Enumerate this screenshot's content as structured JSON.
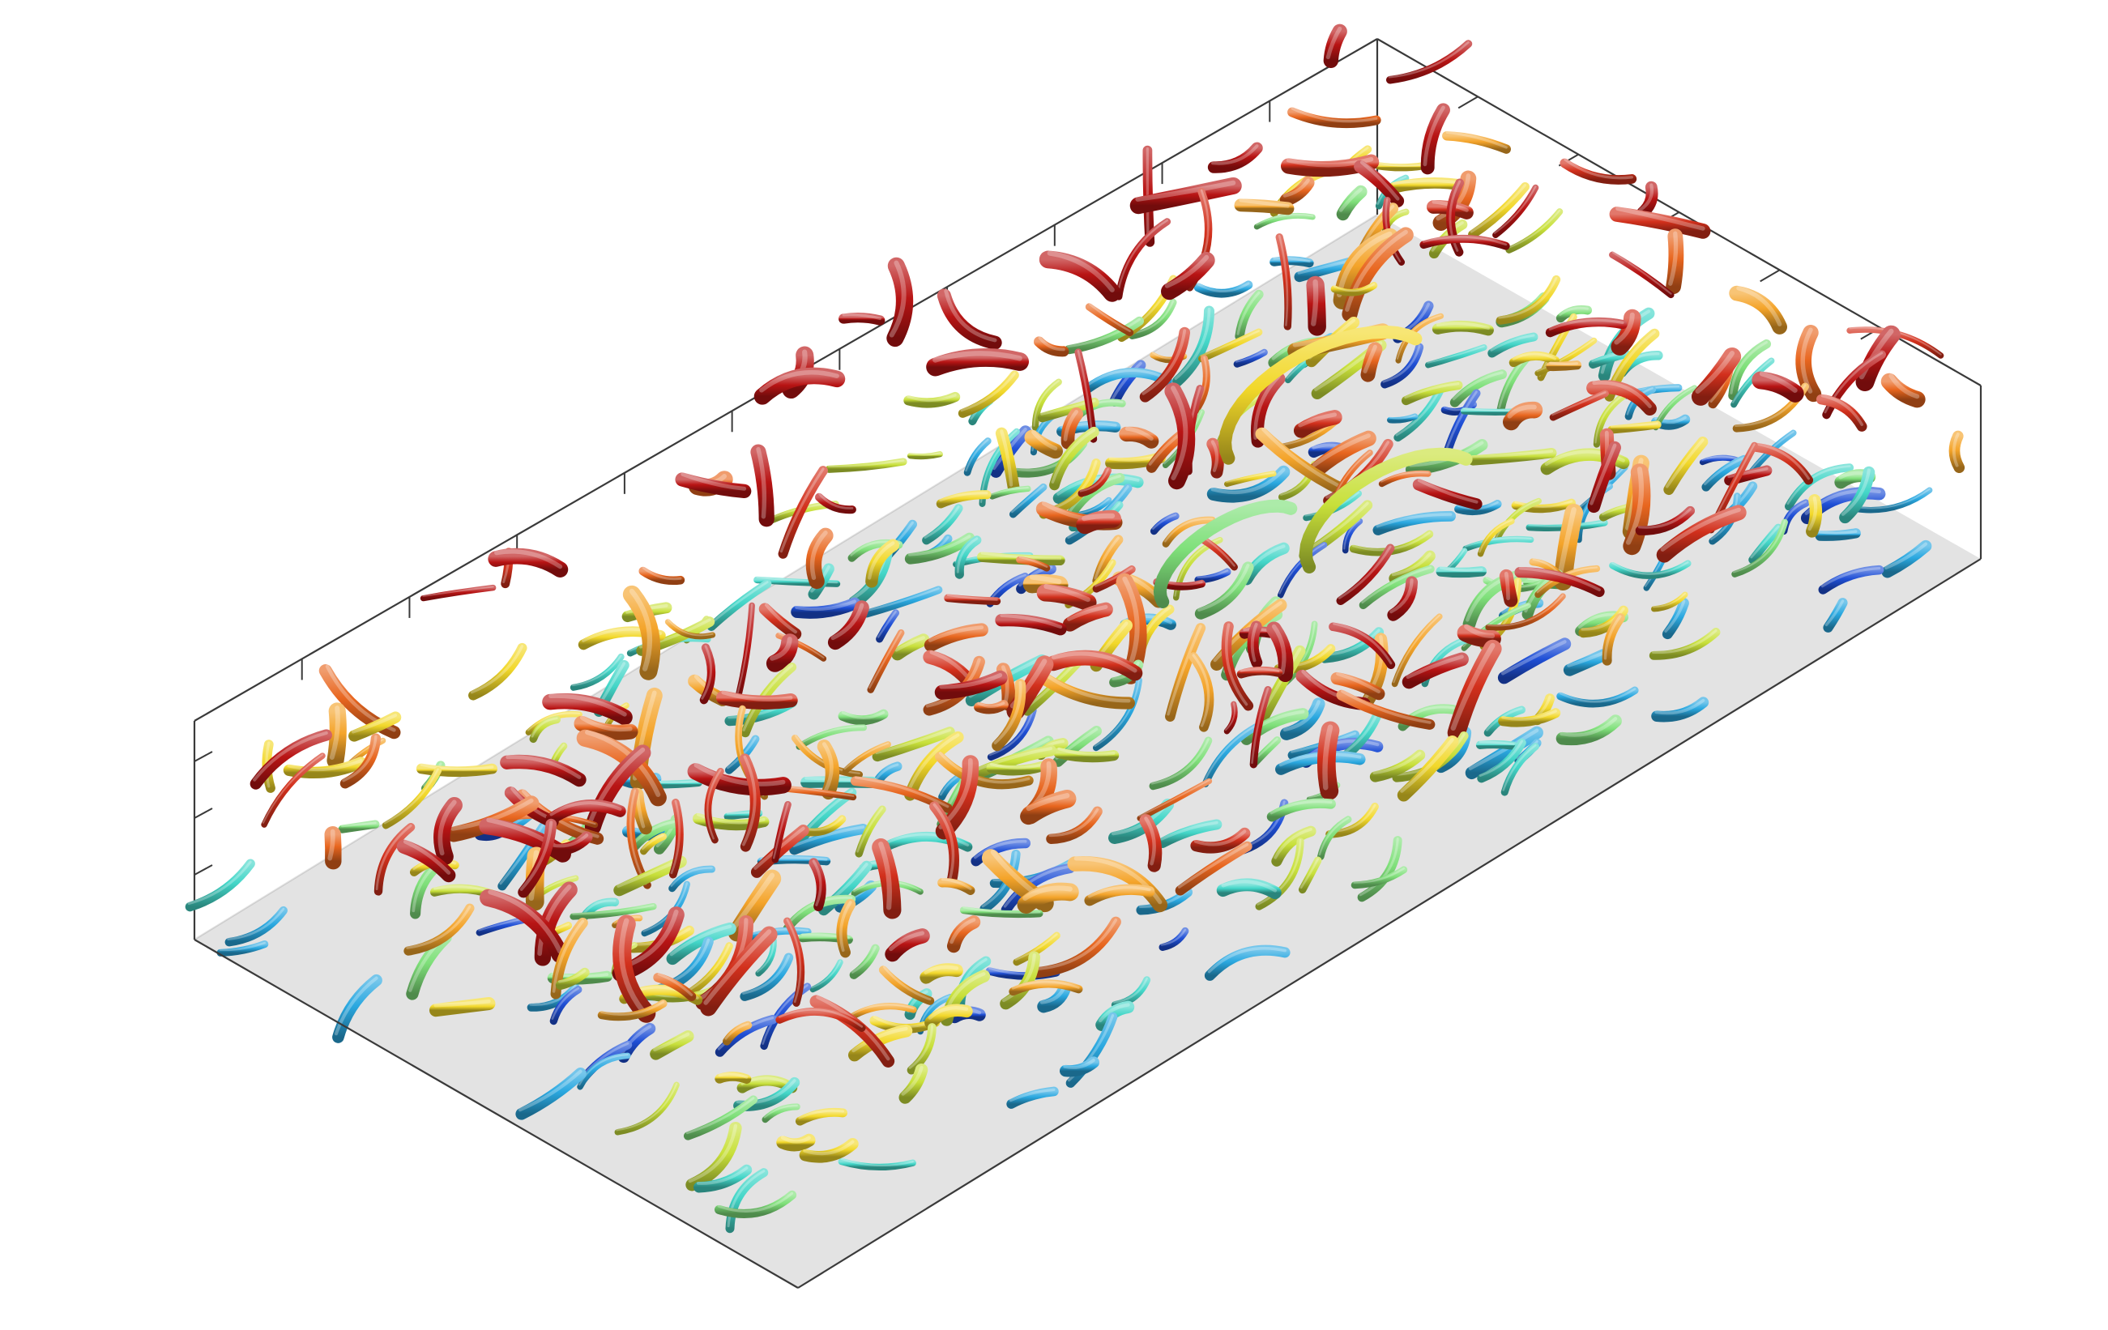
{
  "figure": {
    "kind": "3d-isosurface-visualization",
    "description_visible_text": "",
    "palette": {
      "background": "#ffffff",
      "floor": "#e3e3e3",
      "frame": "#3a3a3a",
      "colormap": [
        "#1f4fd6",
        "#2aa8e0",
        "#43d6c8",
        "#7fe07a",
        "#c8e03a",
        "#f2d82a",
        "#f4a42a",
        "#e8661f",
        "#d2301c",
        "#b81414"
      ]
    }
  }
}
